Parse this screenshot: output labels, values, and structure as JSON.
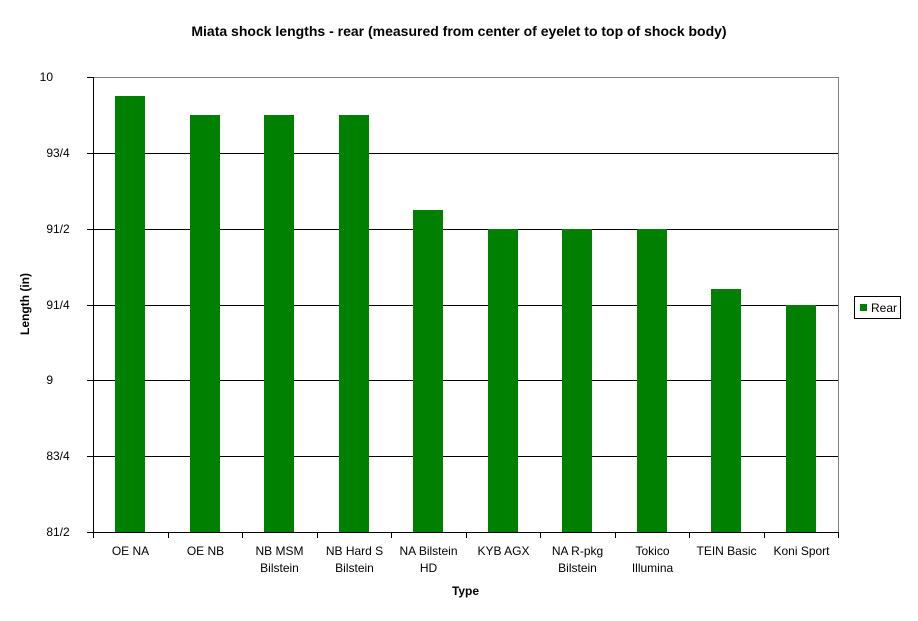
{
  "chart_data": {
    "type": "bar",
    "title": "Miata shock lengths - rear (measured from center of eyelet to top of shock body)",
    "xlabel": "Type",
    "ylabel": "Length (in)",
    "ylim": [
      8.5,
      10
    ],
    "ytick_step": 0.25,
    "yticks": [
      {
        "value": 10,
        "whole": "10",
        "frac": ""
      },
      {
        "value": 9.75,
        "whole": "9",
        "frac": "3/4"
      },
      {
        "value": 9.5,
        "whole": "9",
        "frac": "1/2"
      },
      {
        "value": 9.25,
        "whole": "9",
        "frac": "1/4"
      },
      {
        "value": 9,
        "whole": "9",
        "frac": ""
      },
      {
        "value": 8.75,
        "whole": "8",
        "frac": "3/4"
      },
      {
        "value": 8.5,
        "whole": "8",
        "frac": "1/2"
      }
    ],
    "categories": [
      "OE NA",
      "OE NB",
      "NB MSM Bilstein",
      "NB Hard S Bilstein",
      "NA Bilstein HD",
      "KYB AGX",
      "NA R-pkg Bilstein",
      "Tokico Illumina",
      "TEIN Basic",
      "Koni Sport"
    ],
    "series": [
      {
        "name": "Rear",
        "color": "#008000",
        "values": [
          9.9375,
          9.875,
          9.875,
          9.875,
          9.5625,
          9.5,
          9.5,
          9.5,
          9.3,
          9.25
        ]
      }
    ],
    "grid": true,
    "legend_position": "right"
  },
  "colors": {
    "bar": "#008000",
    "gridline": "#000000",
    "axis": "#000000",
    "plot_border": "#808080",
    "text": "#000000",
    "background": "#ffffff"
  }
}
